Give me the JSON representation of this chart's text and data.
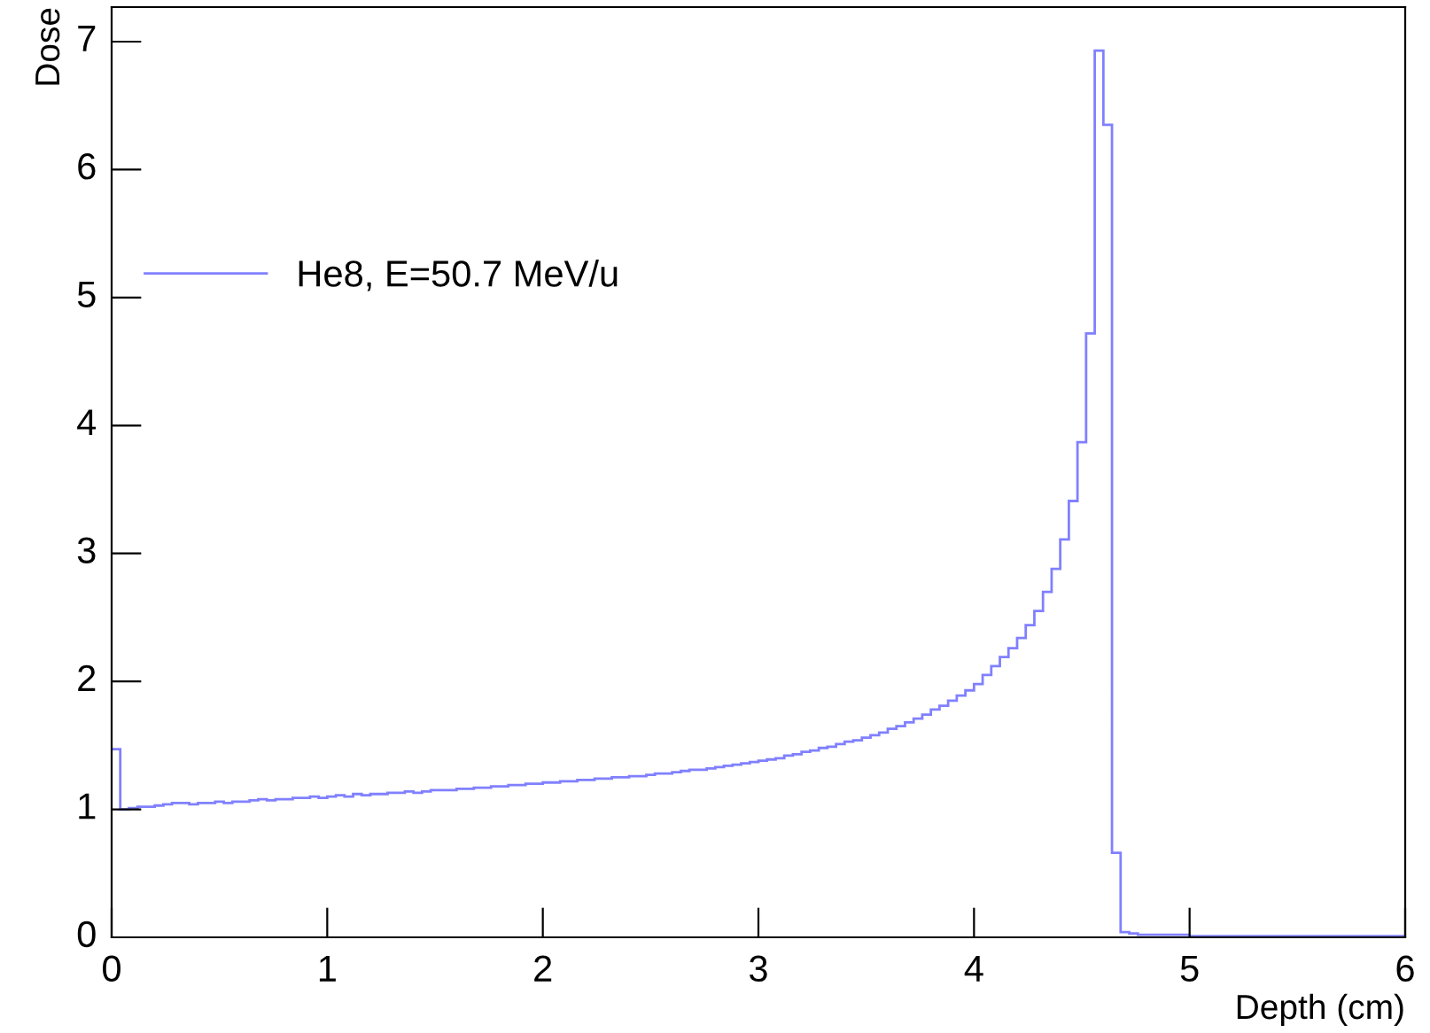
{
  "chart_data": {
    "type": "histogram",
    "xlabel": "Depth (cm)",
    "ylabel": "Dose",
    "bins": [
      0,
      0.04,
      0.08,
      0.12,
      0.16,
      0.2,
      0.24,
      0.28,
      0.32,
      0.36,
      0.4,
      0.44,
      0.48,
      0.52,
      0.56,
      0.6,
      0.64,
      0.68,
      0.72,
      0.76,
      0.8,
      0.84,
      0.88,
      0.92,
      0.96,
      1.0,
      1.04,
      1.08,
      1.12,
      1.16,
      1.2,
      1.24,
      1.28,
      1.32,
      1.36,
      1.4,
      1.44,
      1.48,
      1.52,
      1.56,
      1.6,
      1.64,
      1.68,
      1.72,
      1.76,
      1.8,
      1.84,
      1.88,
      1.92,
      1.96,
      2.0,
      2.04,
      2.08,
      2.12,
      2.16,
      2.2,
      2.24,
      2.28,
      2.32,
      2.36,
      2.4,
      2.44,
      2.48,
      2.52,
      2.56,
      2.6,
      2.64,
      2.68,
      2.72,
      2.76,
      2.8,
      2.84,
      2.88,
      2.92,
      2.96,
      3.0,
      3.04,
      3.08,
      3.12,
      3.16,
      3.2,
      3.24,
      3.28,
      3.32,
      3.36,
      3.4,
      3.44,
      3.48,
      3.52,
      3.56,
      3.6,
      3.64,
      3.68,
      3.72,
      3.76,
      3.8,
      3.84,
      3.88,
      3.92,
      3.96,
      4.0,
      4.04,
      4.08,
      4.12,
      4.16,
      4.2,
      4.24,
      4.28,
      4.32,
      4.36,
      4.4,
      4.44,
      4.48,
      4.52,
      4.56,
      4.6,
      4.64,
      4.68,
      4.72,
      4.76,
      4.8,
      4.84,
      4.88,
      4.92,
      4.96,
      5.0,
      5.04,
      5.08,
      5.12,
      5.16,
      5.2,
      5.24,
      5.28,
      5.32,
      5.36,
      5.4,
      5.44,
      5.48,
      5.52,
      5.56,
      5.6,
      5.64,
      5.68,
      5.72,
      5.76,
      5.8,
      5.84,
      5.88,
      5.92,
      5.96,
      6.0
    ],
    "series": [
      {
        "name": "He8, E=50.7 MeV/u",
        "color": "#8080ff",
        "values": [
          1.47,
          1.0,
          1.01,
          1.02,
          1.02,
          1.03,
          1.04,
          1.05,
          1.05,
          1.04,
          1.05,
          1.05,
          1.06,
          1.05,
          1.06,
          1.06,
          1.07,
          1.08,
          1.07,
          1.08,
          1.08,
          1.09,
          1.09,
          1.1,
          1.09,
          1.1,
          1.11,
          1.1,
          1.12,
          1.11,
          1.12,
          1.12,
          1.13,
          1.13,
          1.14,
          1.13,
          1.14,
          1.15,
          1.15,
          1.15,
          1.16,
          1.16,
          1.17,
          1.17,
          1.18,
          1.18,
          1.19,
          1.19,
          1.2,
          1.2,
          1.21,
          1.21,
          1.22,
          1.22,
          1.23,
          1.23,
          1.24,
          1.24,
          1.25,
          1.25,
          1.26,
          1.26,
          1.27,
          1.28,
          1.28,
          1.29,
          1.3,
          1.31,
          1.31,
          1.32,
          1.33,
          1.34,
          1.35,
          1.36,
          1.37,
          1.38,
          1.39,
          1.4,
          1.42,
          1.43,
          1.45,
          1.46,
          1.48,
          1.49,
          1.51,
          1.53,
          1.54,
          1.56,
          1.58,
          1.6,
          1.63,
          1.65,
          1.68,
          1.71,
          1.74,
          1.78,
          1.81,
          1.85,
          1.89,
          1.93,
          1.98,
          2.05,
          2.12,
          2.19,
          2.26,
          2.34,
          2.44,
          2.55,
          2.7,
          2.88,
          3.11,
          3.41,
          3.87,
          4.72,
          6.93,
          6.35,
          0.66,
          0.04,
          0.03,
          0.02,
          0.02,
          0.02,
          0.02,
          0.02,
          0.02,
          0.01,
          0.01,
          0.01,
          0.01,
          0.01,
          0.01,
          0.01,
          0.01,
          0.01,
          0.01,
          0.01,
          0.01,
          0.01,
          0.01,
          0.01,
          0.01,
          0.01,
          0.01,
          0.01,
          0.01,
          0.01,
          0.01,
          0.01,
          0.01,
          0.01
        ]
      }
    ],
    "xlim": [
      0,
      6
    ],
    "ylim": [
      0,
      7.27
    ],
    "xticks": [
      0,
      1,
      2,
      3,
      4,
      5,
      6
    ],
    "yticks": [
      0,
      1,
      2,
      3,
      4,
      5,
      6,
      7
    ],
    "grid": false,
    "legend": "left"
  }
}
